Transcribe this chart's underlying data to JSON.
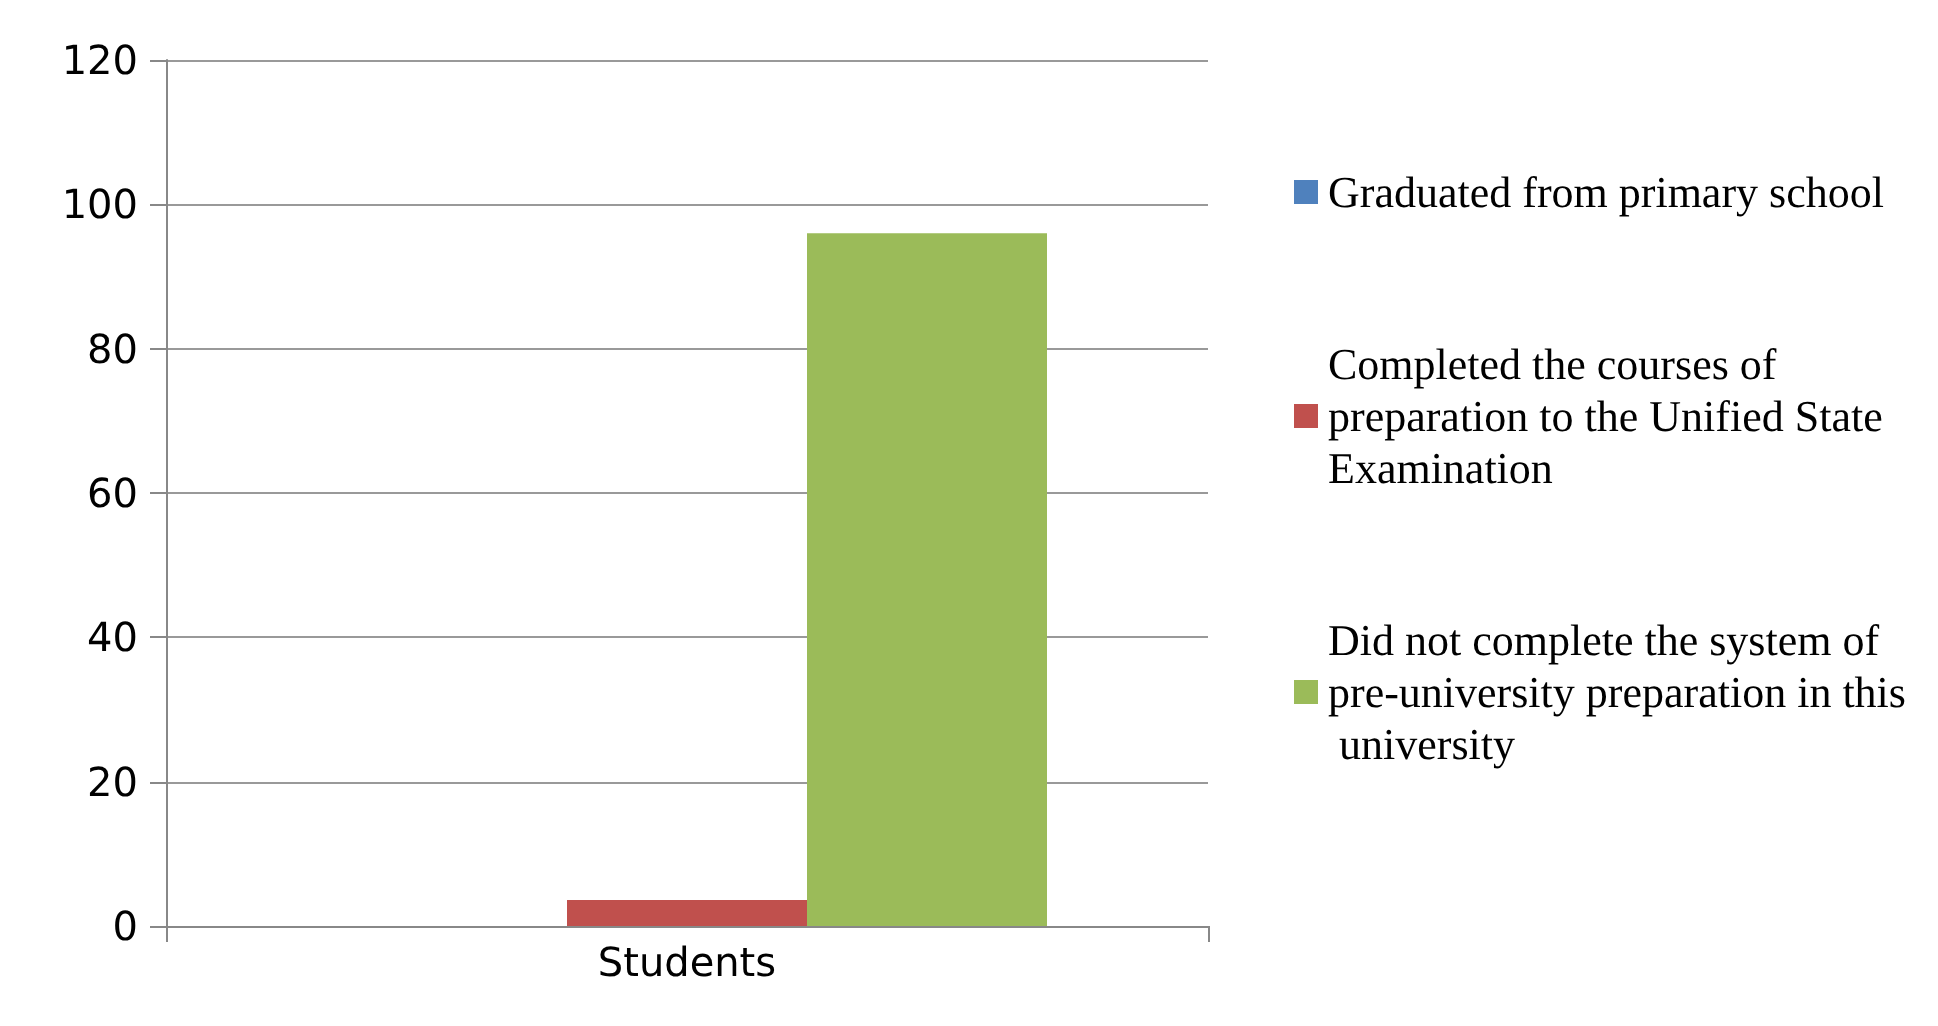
{
  "chart_data": {
    "type": "bar",
    "categories": [
      "Students"
    ],
    "series": [
      {
        "name": "Graduated from primary school",
        "color": "#4f81bd",
        "values": [
          0
        ]
      },
      {
        "name": "Completed the courses of preparation to the Unified State Examination",
        "color": "#c0504d",
        "values": [
          3.6
        ]
      },
      {
        "name": "Did not complete the system of pre-university preparation in this university",
        "color": "#9bbb59",
        "values": [
          96
        ]
      }
    ],
    "ylim": [
      0,
      120
    ],
    "yticks": [
      0,
      20,
      40,
      60,
      80,
      100,
      120
    ],
    "grid": "y",
    "legend": "right"
  }
}
